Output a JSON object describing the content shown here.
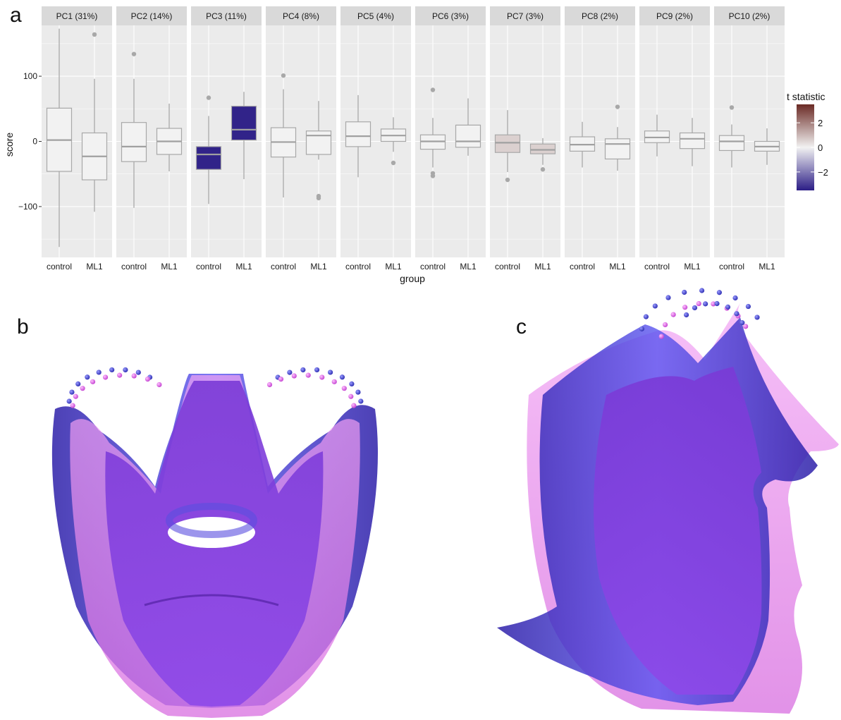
{
  "panel_labels": {
    "a": "a",
    "b": "b",
    "c": "c"
  },
  "legend": {
    "title": "t statistic",
    "ticks": [
      "2",
      "0",
      "−2"
    ],
    "tick_values": [
      2,
      0,
      -2
    ],
    "range": [
      -3.5,
      3.5
    ],
    "colors": {
      "low": "#2b1d86",
      "mid": "#f2f2f2",
      "high": "#6b2a25"
    }
  },
  "chart_data": {
    "type": "boxplot",
    "xlabel": "group",
    "ylabel": "score",
    "ylim": [
      -178,
      178
    ],
    "yticks": [
      -100,
      0,
      100
    ],
    "grid": true,
    "legend_placement": "right",
    "categories": [
      "control",
      "ML1"
    ],
    "facets": [
      {
        "label": "PC1 (31%)",
        "t": 0,
        "boxes": [
          {
            "group": "control",
            "q1": -46,
            "median": 2,
            "q3": 51,
            "lower": -162,
            "upper": 173,
            "outliers": []
          },
          {
            "group": "ML1",
            "q1": -59,
            "median": -23,
            "q3": 13,
            "lower": -108,
            "upper": 96,
            "outliers": [
              164
            ]
          }
        ]
      },
      {
        "label": "PC2 (14%)",
        "t": 0,
        "boxes": [
          {
            "group": "control",
            "q1": -31,
            "median": -8,
            "q3": 29,
            "lower": -102,
            "upper": 96,
            "outliers": [
              134
            ]
          },
          {
            "group": "ML1",
            "q1": -20,
            "median": 0,
            "q3": 20,
            "lower": -46,
            "upper": 58,
            "outliers": []
          }
        ]
      },
      {
        "label": "PC3 (11%)",
        "t": -3.4,
        "boxes": [
          {
            "group": "control",
            "q1": -43,
            "median": -20,
            "q3": -8,
            "lower": -96,
            "upper": 39,
            "outliers": [
              67
            ]
          },
          {
            "group": "ML1",
            "q1": 2,
            "median": 18,
            "q3": 54,
            "lower": -58,
            "upper": 76,
            "outliers": []
          }
        ]
      },
      {
        "label": "PC4 (8%)",
        "t": 0,
        "boxes": [
          {
            "group": "control",
            "q1": -24,
            "median": -1,
            "q3": 21,
            "lower": -86,
            "upper": 80,
            "outliers": [
              101
            ]
          },
          {
            "group": "ML1",
            "q1": -20,
            "median": 9,
            "q3": 16,
            "lower": -28,
            "upper": 62,
            "outliers": [
              -84,
              -87
            ]
          }
        ]
      },
      {
        "label": "PC5 (4%)",
        "t": 0,
        "boxes": [
          {
            "group": "control",
            "q1": -8,
            "median": 8,
            "q3": 30,
            "lower": -55,
            "upper": 71,
            "outliers": []
          },
          {
            "group": "ML1",
            "q1": 0,
            "median": 9,
            "q3": 19,
            "lower": -16,
            "upper": 37,
            "outliers": [
              -33
            ]
          }
        ]
      },
      {
        "label": "PC6 (3%)",
        "t": 0,
        "boxes": [
          {
            "group": "control",
            "q1": -12,
            "median": 0,
            "q3": 10,
            "lower": -40,
            "upper": 36,
            "outliers": [
              79,
              -49,
              -53
            ]
          },
          {
            "group": "ML1",
            "q1": -9,
            "median": 0,
            "q3": 25,
            "lower": -22,
            "upper": 66,
            "outliers": []
          }
        ]
      },
      {
        "label": "PC7 (3%)",
        "t": 0.6,
        "boxes": [
          {
            "group": "control",
            "q1": -17,
            "median": -2,
            "q3": 10,
            "lower": -47,
            "upper": 48,
            "outliers": [
              -59
            ]
          },
          {
            "group": "ML1",
            "q1": -19,
            "median": -13,
            "q3": -4,
            "lower": -36,
            "upper": 5,
            "outliers": [
              -43
            ]
          }
        ]
      },
      {
        "label": "PC8 (2%)",
        "t": 0,
        "boxes": [
          {
            "group": "control",
            "q1": -15,
            "median": -5,
            "q3": 7,
            "lower": -40,
            "upper": 30,
            "outliers": []
          },
          {
            "group": "ML1",
            "q1": -27,
            "median": -4,
            "q3": 4,
            "lower": -45,
            "upper": 22,
            "outliers": [
              53
            ]
          }
        ]
      },
      {
        "label": "PC9 (2%)",
        "t": 0,
        "boxes": [
          {
            "group": "control",
            "q1": -2,
            "median": 6,
            "q3": 16,
            "lower": -23,
            "upper": 41,
            "outliers": []
          },
          {
            "group": "ML1",
            "q1": -11,
            "median": 4,
            "q3": 13,
            "lower": -38,
            "upper": 36,
            "outliers": []
          }
        ]
      },
      {
        "label": "PC10 (2%)",
        "t": 0,
        "boxes": [
          {
            "group": "control",
            "q1": -14,
            "median": 0,
            "q3": 9,
            "lower": -40,
            "upper": 26,
            "outliers": [
              52
            ]
          },
          {
            "group": "ML1",
            "q1": -15,
            "median": -8,
            "q3": 0,
            "lower": -36,
            "upper": 20,
            "outliers": []
          }
        ]
      }
    ]
  },
  "renders": {
    "b": {
      "view": "frontal",
      "surfaces": [
        "control mean shape",
        "ML1 mean shape"
      ],
      "colors": [
        "#6b45e6",
        "#e17ee8"
      ]
    },
    "c": {
      "view": "lateral",
      "surfaces": [
        "control mean shape",
        "ML1 mean shape"
      ],
      "colors": [
        "#6b45e6",
        "#e17ee8"
      ]
    }
  }
}
